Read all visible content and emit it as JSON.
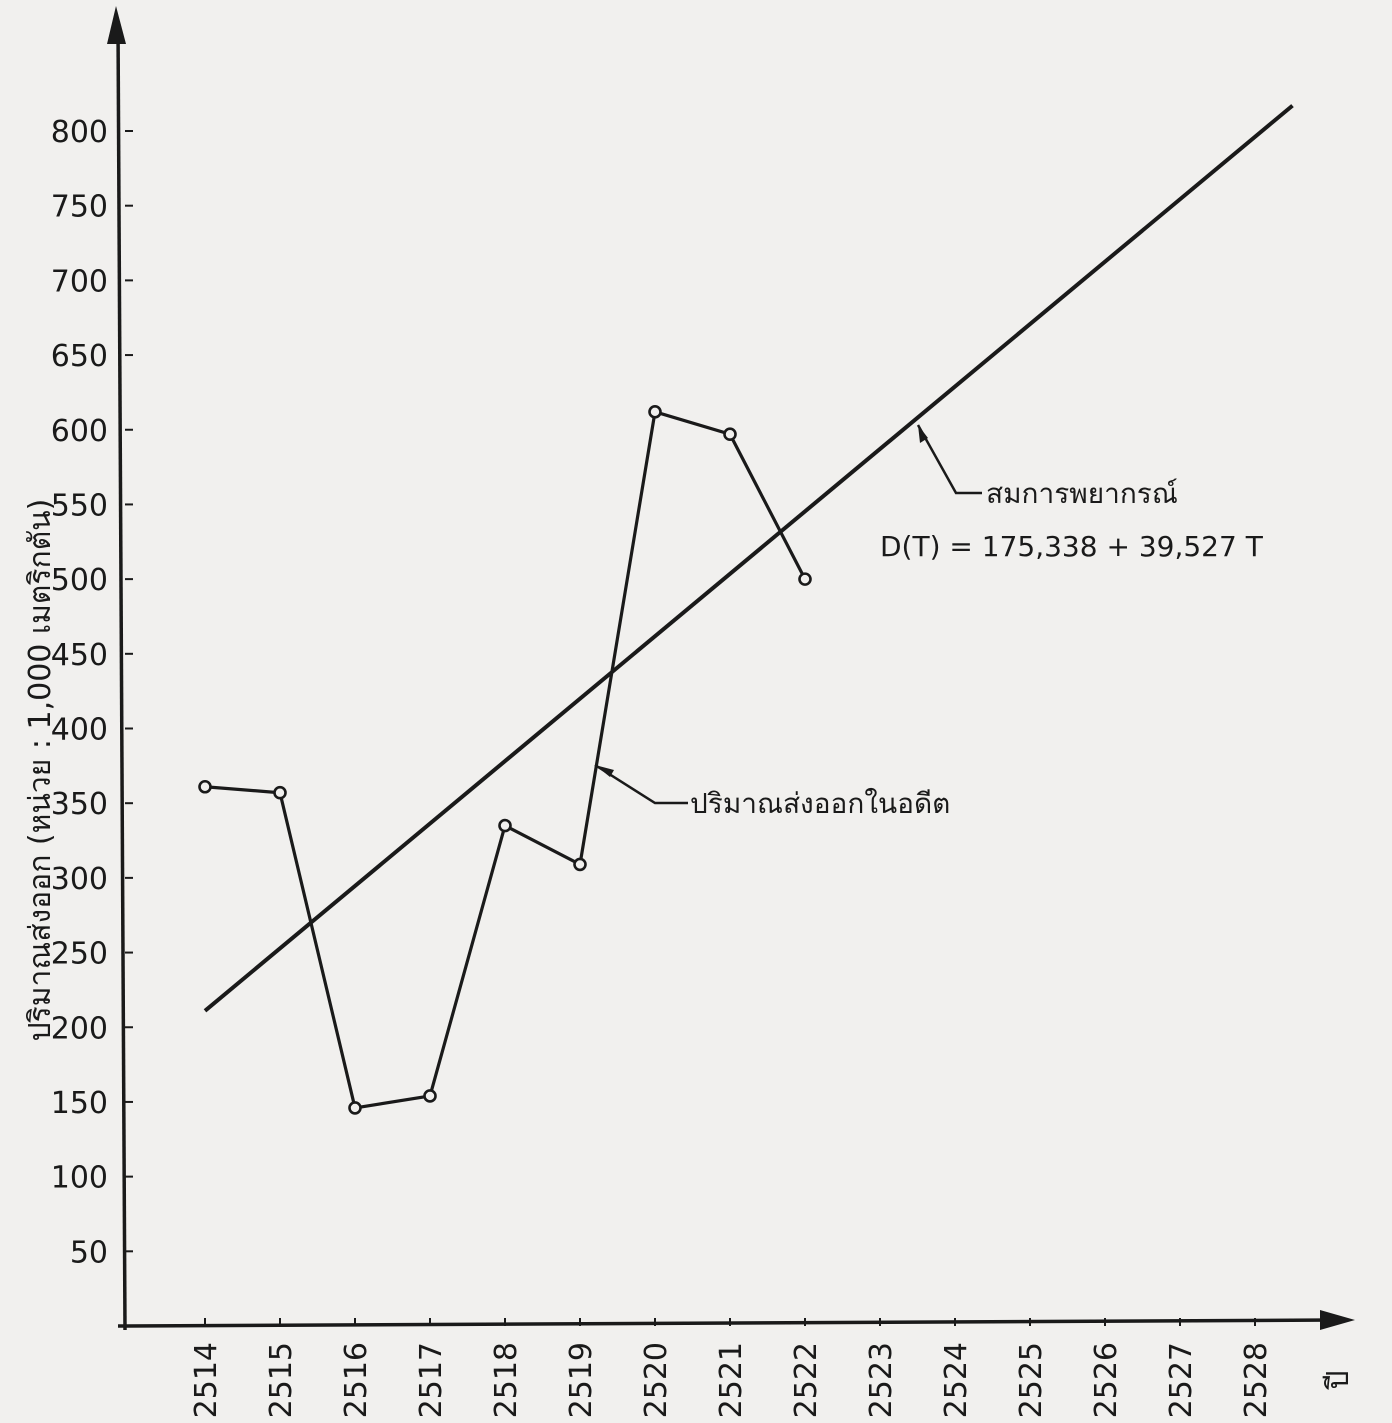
{
  "chart_data": {
    "type": "line",
    "ylabel": "ปริมาณส่งออก  (หน่วย : 1,000 เมตริกตัน)",
    "xlabel": "ปี",
    "x_ticks": [
      "2514",
      "2515",
      "2516",
      "2517",
      "2518",
      "2519",
      "2520",
      "2521",
      "2522",
      "2523",
      "2524",
      "2525",
      "2526",
      "2527",
      "2528"
    ],
    "y_ticks": [
      50,
      100,
      150,
      200,
      250,
      300,
      350,
      400,
      450,
      500,
      550,
      600,
      650,
      700,
      750,
      800
    ],
    "ylim": [
      0,
      800
    ],
    "series": [
      {
        "name": "ปริมาณส่งออกในอดีต",
        "x": [
          "2514",
          "2515",
          "2516",
          "2517",
          "2518",
          "2519",
          "2520",
          "2521",
          "2522"
        ],
        "values": [
          361,
          357,
          146,
          154,
          335,
          309,
          612,
          597,
          500
        ],
        "markers": true
      },
      {
        "name": "สมการพยากรณ์",
        "x": [
          "2514",
          "2528.5"
        ],
        "values": [
          211,
          817
        ],
        "markers": false
      }
    ],
    "annotations": {
      "forecast_label": "สมการพยากรณ์",
      "forecast_equation": "D(T)  = 175,338 + 39,527  T",
      "history_label": "ปริมาณส่งออกในอดีต"
    },
    "colors": {
      "line": "#1a1a1a",
      "background": "#f1f0ee"
    }
  }
}
